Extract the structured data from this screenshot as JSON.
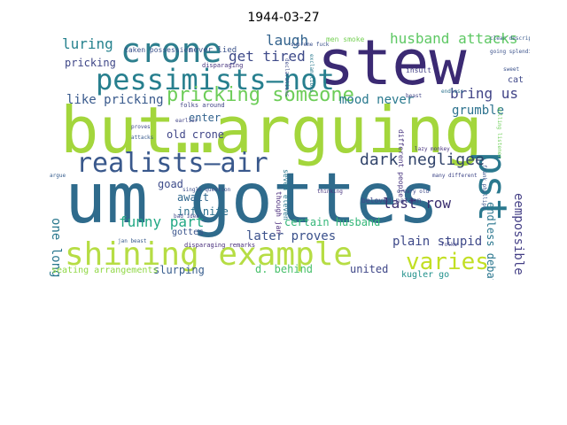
{
  "title": "1944-03-27",
  "words": [
    {
      "text": "um gottes",
      "color": "#2f6b8c"
    },
    {
      "text": "but…arguing",
      "color": "#a3d63c"
    },
    {
      "text": "stew",
      "color": "#3b2a73"
    },
    {
      "text": "shining example",
      "color": "#b6dd44"
    },
    {
      "text": "pessimists—not",
      "color": "#277f8e"
    },
    {
      "text": "crone",
      "color": "#2d7f8e"
    },
    {
      "text": "realists—air",
      "color": "#39588c"
    },
    {
      "text": "pst",
      "color": "#2a788e"
    },
    {
      "text": "varies",
      "color": "#c2df23"
    },
    {
      "text": "pricking someone",
      "color": "#6dcd59"
    },
    {
      "text": "dark negligee",
      "color": "#31446b"
    },
    {
      "text": "husband attacks",
      "color": "#5dc863"
    },
    {
      "text": "get tired",
      "color": "#3e4a89"
    },
    {
      "text": "bring us",
      "color": "#414487"
    },
    {
      "text": "luring",
      "color": "#26828e"
    },
    {
      "text": "laugh",
      "color": "#33638d"
    },
    {
      "text": "last row",
      "color": "#3b2f6f"
    },
    {
      "text": "funny part",
      "color": "#22a884"
    },
    {
      "text": "mood never",
      "color": "#29798e"
    },
    {
      "text": "pricking",
      "color": "#3f4788"
    },
    {
      "text": "like pricking",
      "color": "#38598c"
    },
    {
      "text": "grumble",
      "color": "#2c728e"
    },
    {
      "text": "eempossible",
      "color": "#433e85"
    },
    {
      "text": "endless debates",
      "color": "#2a768e"
    },
    {
      "text": "later proves",
      "color": "#3b518b"
    },
    {
      "text": "certain husband",
      "color": "#35b779"
    },
    {
      "text": "plain stupid",
      "color": "#3e4989"
    },
    {
      "text": "one long",
      "color": "#2a788e"
    },
    {
      "text": "lied",
      "color": "#3a548c"
    },
    {
      "text": "cat luring",
      "color": "#3f4889"
    },
    {
      "text": "old crone",
      "color": "#404688"
    },
    {
      "text": "enter",
      "color": "#33638d"
    },
    {
      "text": "await",
      "color": "#31688e"
    },
    {
      "text": "infinite",
      "color": "#2d708e"
    },
    {
      "text": "goad",
      "color": "#3e4c8a"
    },
    {
      "text": "d. behind",
      "color": "#4ac16d"
    },
    {
      "text": "united",
      "color": "#3f4788"
    },
    {
      "text": "slurping",
      "color": "#365c8d"
    },
    {
      "text": "gottes",
      "color": "#3a548c"
    },
    {
      "text": "kugler go",
      "color": "#21918c"
    },
    {
      "text": "seating arrangements",
      "color": "#8fd744"
    },
    {
      "text": "never lied",
      "color": "#3b528b"
    },
    {
      "text": "taken possession",
      "color": "#3b528b"
    },
    {
      "text": "men smoke",
      "color": "#75d054"
    },
    {
      "text": "folks around",
      "color": "#414487"
    },
    {
      "text": "disparaging",
      "color": "#46337e"
    },
    {
      "text": "beloved nation",
      "color": "#3f4788"
    },
    {
      "text": "insult",
      "color": "#424086"
    },
    {
      "text": "single question",
      "color": "#3d4e8a"
    },
    {
      "text": "disparaging remarks",
      "color": "#472d7b"
    },
    {
      "text": "bad idea",
      "color": "#3f4788"
    },
    {
      "text": "jan beast",
      "color": "#375a8c"
    },
    {
      "text": "argue",
      "color": "#365d8d"
    },
    {
      "text": "supreme fuck",
      "color": "#3b528b"
    },
    {
      "text": "exclamations",
      "color": "#29798e"
    },
    {
      "text": "declarations",
      "color": "#3e4c8a"
    },
    {
      "text": "different people",
      "color": "#46337e"
    },
    {
      "text": "seven eleven",
      "color": "#2a788e"
    },
    {
      "text": "clear description",
      "color": "#38598c"
    },
    {
      "text": "endless",
      "color": "#2c728e"
    },
    {
      "text": "sweet",
      "color": "#3b528b"
    },
    {
      "text": "dreary old",
      "color": "#3e4989"
    },
    {
      "text": "lazy monkey",
      "color": "#46327e"
    },
    {
      "text": "folks",
      "color": "#414487"
    },
    {
      "text": "many different",
      "color": "#3f4788"
    },
    {
      "text": "though jan",
      "color": "#482979"
    },
    {
      "text": "going splendidly",
      "color": "#3b528b"
    },
    {
      "text": "frank phillips",
      "color": "#39568c"
    },
    {
      "text": "earlier",
      "color": "#414487"
    },
    {
      "text": "proves",
      "color": "#3e4a89"
    },
    {
      "text": "attacks",
      "color": "#38598c"
    },
    {
      "text": "beast",
      "color": "#414487"
    },
    {
      "text": "thinking",
      "color": "#46337e"
    },
    {
      "text": "willing listener",
      "color": "#6ece58"
    }
  ]
}
